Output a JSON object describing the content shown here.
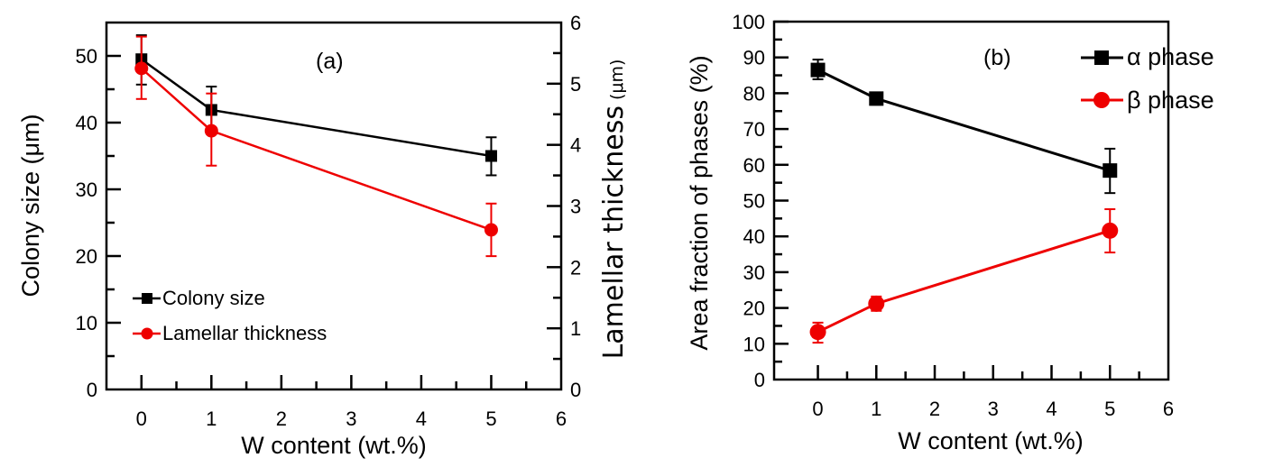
{
  "colors": {
    "black_series": "#000000",
    "red_series": "#ee0000"
  },
  "chart_data": [
    {
      "panel_label": "(a)",
      "type": "line",
      "xlabel": "W content (wt.%)",
      "ylabel": "Colony size (μm)",
      "ylabel_main": "Colony size ",
      "ylabel_unit": "(μm)",
      "y2label": "Lamellar thickness",
      "y2label_unit": "(μm)",
      "xlim": [
        -0.5,
        6
      ],
      "ylim": [
        0,
        55
      ],
      "y2lim": [
        0,
        6
      ],
      "x_ticks": [
        "0",
        "1",
        "2",
        "3",
        "4",
        "5",
        "6"
      ],
      "y_ticks": [
        "0",
        "10",
        "20",
        "30",
        "40",
        "50"
      ],
      "y2_ticks": [
        "0",
        "1",
        "2",
        "3",
        "4",
        "5",
        "6"
      ],
      "legend_position": "bottom-left",
      "series": [
        {
          "name": "Colony size",
          "axis": "left",
          "marker": "square",
          "color": "#000000",
          "x": [
            0,
            1,
            5
          ],
          "y": [
            49.5,
            41.9,
            35.0
          ],
          "err_low": [
            45.7,
            38.4,
            32.1
          ],
          "err_high": [
            53.1,
            45.4,
            37.8
          ]
        },
        {
          "name": "Lamellar thickness",
          "axis": "right",
          "marker": "circle",
          "color": "#ee0000",
          "x": [
            0,
            1,
            5
          ],
          "y": [
            5.25,
            4.23,
            2.61
          ],
          "err_low": [
            4.75,
            3.66,
            2.18
          ],
          "err_high": [
            5.77,
            4.84,
            3.04
          ]
        }
      ]
    },
    {
      "panel_label": "(b)",
      "type": "line",
      "xlabel": "W content (wt.%)",
      "ylabel": "Area fraction of phases (%)",
      "xlim": [
        -0.75,
        6
      ],
      "ylim": [
        0,
        100
      ],
      "x_ticks": [
        "0",
        "1",
        "2",
        "3",
        "4",
        "5",
        "6"
      ],
      "y_ticks": [
        "0",
        "10",
        "20",
        "30",
        "40",
        "50",
        "60",
        "70",
        "80",
        "90",
        "100"
      ],
      "legend_position": "top-right",
      "series": [
        {
          "name": "α phase",
          "marker": "square",
          "color": "#000000",
          "x": [
            0,
            1,
            5
          ],
          "y": [
            86.5,
            78.5,
            58.4
          ],
          "err_low": [
            83.9,
            76.8,
            52.1
          ],
          "err_high": [
            89.4,
            80.2,
            64.5
          ]
        },
        {
          "name": "β phase",
          "marker": "circle",
          "color": "#ee0000",
          "x": [
            0,
            1,
            5
          ],
          "y": [
            13.3,
            21.2,
            41.6
          ],
          "err_low": [
            10.3,
            19.2,
            35.5
          ],
          "err_high": [
            15.9,
            23.2,
            47.6
          ]
        }
      ]
    }
  ]
}
